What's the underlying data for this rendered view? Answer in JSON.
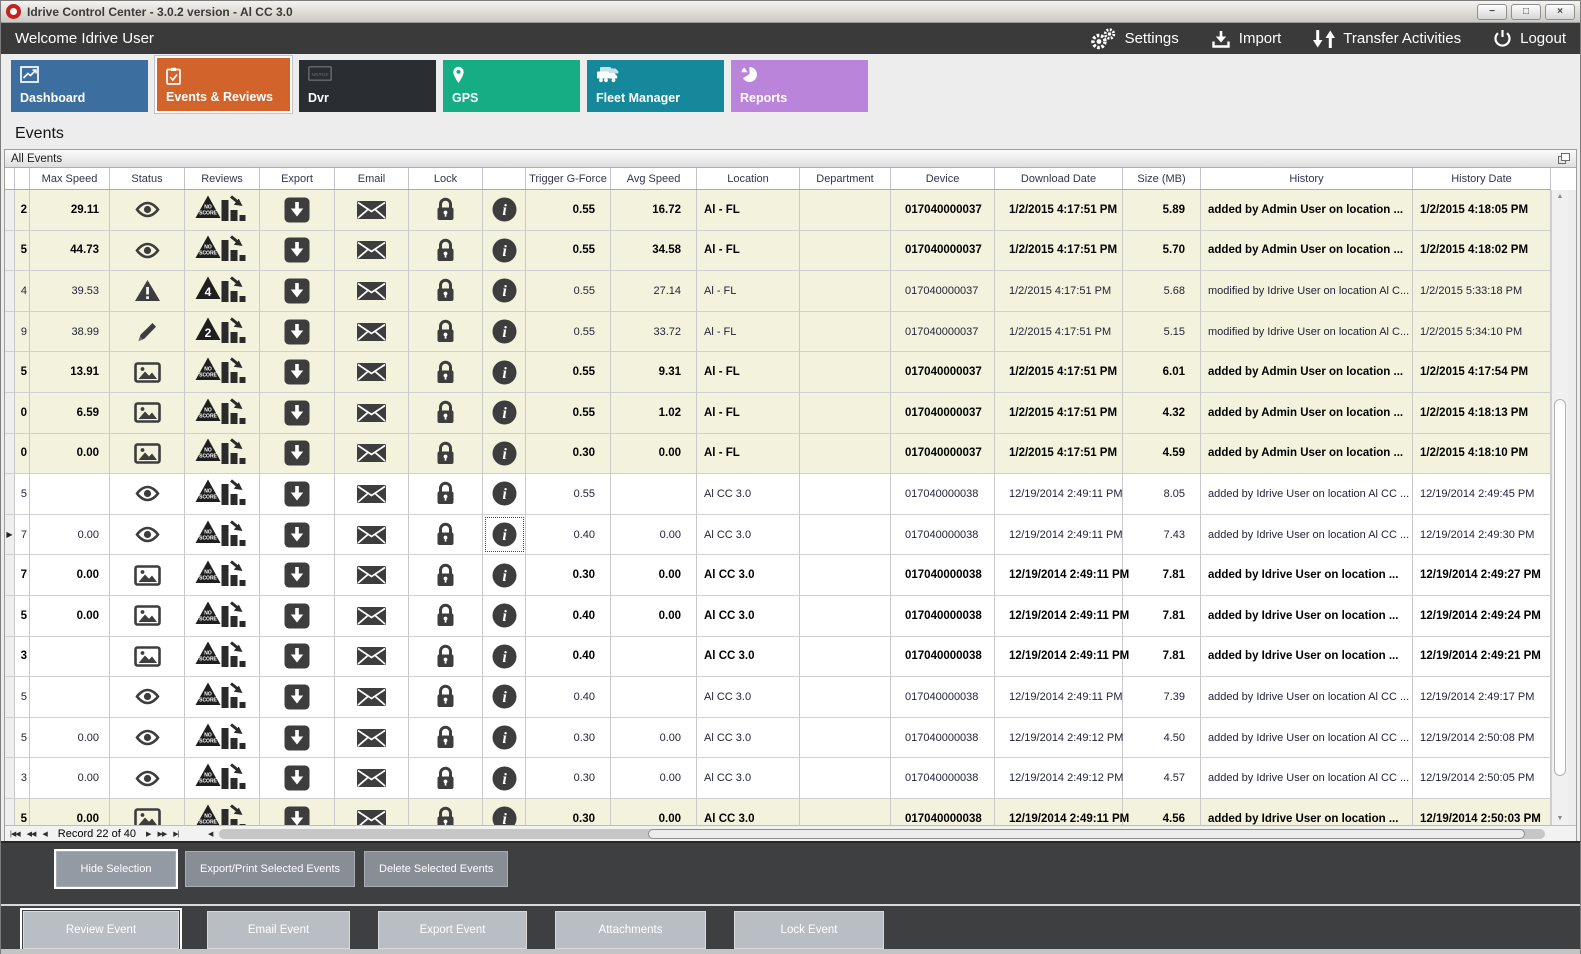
{
  "window": {
    "title": "Idrive Control Center - 3.0.2 version - Al CC 3.0",
    "buttons": [
      {
        "name": "minimize",
        "glyph": "−"
      },
      {
        "name": "maximize",
        "glyph": "□"
      },
      {
        "name": "close",
        "glyph": "×"
      }
    ]
  },
  "topbar": {
    "welcome": "Welcome Idrive User",
    "actions": [
      {
        "label": "Settings",
        "icon": "gears-icon"
      },
      {
        "label": "Import",
        "icon": "import-icon"
      },
      {
        "label": "Transfer Activities",
        "icon": "transfer-icon"
      },
      {
        "label": "Logout",
        "icon": "power-icon"
      }
    ]
  },
  "tabs": [
    {
      "label": "Dashboard",
      "color": "#3c6f9f",
      "icon": "chart-icon",
      "active": false
    },
    {
      "label": "Events & Reviews",
      "color": "#d2632b",
      "icon": "clipboard-icon",
      "active": true
    },
    {
      "label": "Dvr",
      "color": "#2a2e33",
      "icon": "dvr-icon",
      "active": false
    },
    {
      "label": "GPS",
      "color": "#16ad85",
      "icon": "pin-icon",
      "active": false
    },
    {
      "label": "Fleet Manager",
      "color": "#15889b",
      "icon": "trucks-icon",
      "active": false
    },
    {
      "label": "Reports",
      "color": "#ba84da",
      "icon": "pie-icon",
      "active": false
    }
  ],
  "page_title": "Events",
  "panel_title": "All Events",
  "grid": {
    "columns": [
      "",
      "",
      "Max Speed",
      "Status",
      "Reviews",
      "Export",
      "Email",
      "Lock",
      "",
      "Trigger G-Force",
      "Avg Speed",
      "Location",
      "Department",
      "Device",
      "Download Date",
      "Size (MB)",
      "History",
      "History Date"
    ],
    "rows": [
      {
        "id_clip": "2",
        "max_speed": "29.11",
        "status": "eye",
        "review": "NO SCORE",
        "trigger": "0.55",
        "avg_speed": "16.72",
        "location": "Al - FL",
        "department": "",
        "device": "017040000037",
        "download_date": "1/2/2015 4:17:51 PM",
        "size": "5.89",
        "history": "added by Admin User on location ...",
        "history_date": "1/2/2015 4:18:05 PM",
        "bold": true,
        "tinted": true,
        "current": false
      },
      {
        "id_clip": "5",
        "max_speed": "44.73",
        "status": "eye",
        "review": "NO SCORE",
        "trigger": "0.55",
        "avg_speed": "34.58",
        "location": "Al - FL",
        "department": "",
        "device": "017040000037",
        "download_date": "1/2/2015 4:17:51 PM",
        "size": "5.70",
        "history": "added by Admin User on location ...",
        "history_date": "1/2/2015 4:18:02 PM",
        "bold": true,
        "tinted": true,
        "current": false
      },
      {
        "id_clip": "4",
        "max_speed": "39.53",
        "status": "warning",
        "review": "4",
        "trigger": "0.55",
        "avg_speed": "27.14",
        "location": "Al - FL",
        "department": "",
        "device": "017040000037",
        "download_date": "1/2/2015 4:17:51 PM",
        "size": "5.68",
        "history": "modified by Idrive User on location Al C...",
        "history_date": "1/2/2015 5:33:18 PM",
        "bold": false,
        "tinted": true,
        "current": false
      },
      {
        "id_clip": "9",
        "max_speed": "38.99",
        "status": "pencil",
        "review": "2",
        "trigger": "0.55",
        "avg_speed": "33.72",
        "location": "Al - FL",
        "department": "",
        "device": "017040000037",
        "download_date": "1/2/2015 4:17:51 PM",
        "size": "5.15",
        "history": "modified by Idrive User on location Al C...",
        "history_date": "1/2/2015 5:34:10 PM",
        "bold": false,
        "tinted": true,
        "current": false
      },
      {
        "id_clip": "5",
        "max_speed": "13.91",
        "status": "image",
        "review": "NO SCORE",
        "trigger": "0.55",
        "avg_speed": "9.31",
        "location": "Al - FL",
        "department": "",
        "device": "017040000037",
        "download_date": "1/2/2015 4:17:51 PM",
        "size": "6.01",
        "history": "added by Admin User on location ...",
        "history_date": "1/2/2015 4:17:54 PM",
        "bold": true,
        "tinted": true,
        "current": false
      },
      {
        "id_clip": "0",
        "max_speed": "6.59",
        "status": "image",
        "review": "NO SCORE",
        "trigger": "0.55",
        "avg_speed": "1.02",
        "location": "Al - FL",
        "department": "",
        "device": "017040000037",
        "download_date": "1/2/2015 4:17:51 PM",
        "size": "4.32",
        "history": "added by Admin User on location ...",
        "history_date": "1/2/2015 4:18:13 PM",
        "bold": true,
        "tinted": true,
        "current": false
      },
      {
        "id_clip": "0",
        "max_speed": "0.00",
        "status": "image",
        "review": "NO SCORE",
        "trigger": "0.30",
        "avg_speed": "0.00",
        "location": "Al - FL",
        "department": "",
        "device": "017040000037",
        "download_date": "1/2/2015 4:17:51 PM",
        "size": "4.59",
        "history": "added by Admin User on location ...",
        "history_date": "1/2/2015 4:18:10 PM",
        "bold": true,
        "tinted": true,
        "current": false
      },
      {
        "id_clip": "5",
        "max_speed": "",
        "status": "eye",
        "review": "NO SCORE",
        "trigger": "0.55",
        "avg_speed": "",
        "location": "Al CC 3.0",
        "department": "",
        "device": "017040000038",
        "download_date": "12/19/2014 2:49:11 PM",
        "size": "8.05",
        "history": "added by Idrive User on location Al CC ...",
        "history_date": "12/19/2014 2:49:45 PM",
        "bold": false,
        "tinted": false,
        "current": false
      },
      {
        "id_clip": "7",
        "max_speed": "0.00",
        "status": "eye",
        "review": "NO SCORE",
        "trigger": "0.40",
        "avg_speed": "0.00",
        "location": "Al CC 3.0",
        "department": "",
        "device": "017040000038",
        "download_date": "12/19/2014 2:49:11 PM",
        "size": "7.43",
        "history": "added by Idrive User on location Al CC ...",
        "history_date": "12/19/2014 2:49:30 PM",
        "bold": false,
        "tinted": false,
        "current": true
      },
      {
        "id_clip": "7",
        "max_speed": "0.00",
        "status": "image",
        "review": "NO SCORE",
        "trigger": "0.30",
        "avg_speed": "0.00",
        "location": "Al CC 3.0",
        "department": "",
        "device": "017040000038",
        "download_date": "12/19/2014 2:49:11 PM",
        "size": "7.81",
        "history": "added by Idrive User on location ...",
        "history_date": "12/19/2014 2:49:27 PM",
        "bold": true,
        "tinted": false,
        "current": false
      },
      {
        "id_clip": "5",
        "max_speed": "0.00",
        "status": "image",
        "review": "NO SCORE",
        "trigger": "0.40",
        "avg_speed": "0.00",
        "location": "Al CC 3.0",
        "department": "",
        "device": "017040000038",
        "download_date": "12/19/2014 2:49:11 PM",
        "size": "7.81",
        "history": "added by Idrive User on location ...",
        "history_date": "12/19/2014 2:49:24 PM",
        "bold": true,
        "tinted": false,
        "current": false
      },
      {
        "id_clip": "3",
        "max_speed": "",
        "status": "image",
        "review": "NO SCORE",
        "trigger": "0.40",
        "avg_speed": "",
        "location": "Al CC 3.0",
        "department": "",
        "device": "017040000038",
        "download_date": "12/19/2014 2:49:11 PM",
        "size": "7.81",
        "history": "added by Idrive User on location ...",
        "history_date": "12/19/2014 2:49:21 PM",
        "bold": true,
        "tinted": false,
        "current": false
      },
      {
        "id_clip": "5",
        "max_speed": "",
        "status": "eye",
        "review": "NO SCORE",
        "trigger": "0.40",
        "avg_speed": "",
        "location": "Al CC 3.0",
        "department": "",
        "device": "017040000038",
        "download_date": "12/19/2014 2:49:11 PM",
        "size": "7.39",
        "history": "added by Idrive User on location Al CC ...",
        "history_date": "12/19/2014 2:49:17 PM",
        "bold": false,
        "tinted": false,
        "current": false
      },
      {
        "id_clip": "5",
        "max_speed": "0.00",
        "status": "eye",
        "review": "NO SCORE",
        "trigger": "0.30",
        "avg_speed": "0.00",
        "location": "Al CC 3.0",
        "department": "",
        "device": "017040000038",
        "download_date": "12/19/2014 2:49:12 PM",
        "size": "4.50",
        "history": "added by Idrive User on location Al CC ...",
        "history_date": "12/19/2014 2:50:08 PM",
        "bold": false,
        "tinted": false,
        "current": false
      },
      {
        "id_clip": "3",
        "max_speed": "0.00",
        "status": "eye",
        "review": "NO SCORE",
        "trigger": "0.30",
        "avg_speed": "0.00",
        "location": "Al CC 3.0",
        "department": "",
        "device": "017040000038",
        "download_date": "12/19/2014 2:49:12 PM",
        "size": "4.57",
        "history": "added by Idrive User on location Al CC ...",
        "history_date": "12/19/2014 2:50:05 PM",
        "bold": false,
        "tinted": false,
        "current": false
      },
      {
        "id_clip": "5",
        "max_speed": "0.00",
        "status": "image",
        "review": "NO SCORE",
        "trigger": "0.30",
        "avg_speed": "0.00",
        "location": "Al CC 3.0",
        "department": "",
        "device": "017040000038",
        "download_date": "12/19/2014 2:49:11 PM",
        "size": "4.56",
        "history": "added by Idrive User on location ...",
        "history_date": "12/19/2014 2:50:03 PM",
        "bold": true,
        "tinted": true,
        "current": false
      }
    ]
  },
  "pager": {
    "record_text": "Record 22 of 40"
  },
  "selection_toolbar": [
    {
      "label": "Hide Selection",
      "highlighted": true
    },
    {
      "label": "Export/Print Selected Events",
      "highlighted": false
    },
    {
      "label": "Delete Selected  Events",
      "highlighted": false
    }
  ],
  "event_toolbar": [
    {
      "label": "Review Event",
      "highlighted": true,
      "width": 156
    },
    {
      "label": "Email Event",
      "highlighted": false,
      "width": 143
    },
    {
      "label": "Export Event",
      "highlighted": false,
      "width": 149
    },
    {
      "label": "Attachments",
      "highlighted": false,
      "width": 151
    },
    {
      "label": "Lock Event",
      "highlighted": false,
      "width": 150
    }
  ]
}
